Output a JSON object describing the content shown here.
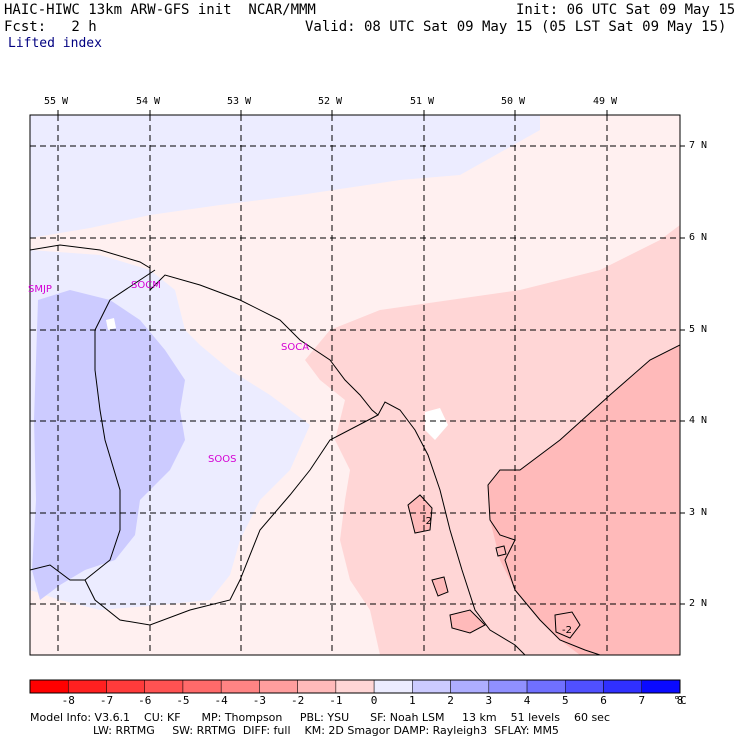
{
  "header": {
    "title": "HAIC-HIWC 13km ARW-GFS init  NCAR/MMM",
    "fcst": "Fcst:   2 h",
    "init": "Init: 06 UTC Sat 09 May 15",
    "valid": "Valid: 08 UTC Sat 09 May 15 (05 LST Sat 09 May 15)",
    "field": "Lifted index"
  },
  "map": {
    "lon_labels": [
      "55 W",
      "54 W",
      "53 W",
      "52 W",
      "51 W",
      "50 W",
      "49 W"
    ],
    "lat_labels": [
      "7 N",
      "6 N",
      "5 N",
      "4 N",
      "3 N",
      "2 N"
    ],
    "stations": [
      "SMJP",
      "SOCM",
      "SOCA",
      "SOOS"
    ],
    "contour_labels": [
      "-2",
      "-2"
    ]
  },
  "colorbar": {
    "unit": "°C",
    "labels": [
      "-8",
      "-7",
      "-6",
      "-5",
      "-4",
      "-3",
      "-2",
      "-1",
      "0",
      "1",
      "2",
      "3",
      "4",
      "5",
      "6",
      "7",
      "8"
    ],
    "colors": [
      "#ff0000",
      "#ff2020",
      "#ff3b3b",
      "#ff5252",
      "#ff6a6a",
      "#ff8484",
      "#ff9e9e",
      "#ffbaba",
      "#ffd6d6",
      "#ececff",
      "#cccbff",
      "#aeaeff",
      "#9090ff",
      "#7070ff",
      "#5050ff",
      "#3030ff",
      "#0a0aff"
    ]
  },
  "footer": {
    "line1": "Model Info: V3.6.1    CU: KF      MP: Thompson     PBL: YSU      SF: Noah LSM     13 km    51 levels    60 sec",
    "line2": "                  LW: RRTMG     SW: RRTMG  DIFF: full    KM: 2D Smagor DAMP: Rayleigh3  SFLAY: MM5"
  }
}
